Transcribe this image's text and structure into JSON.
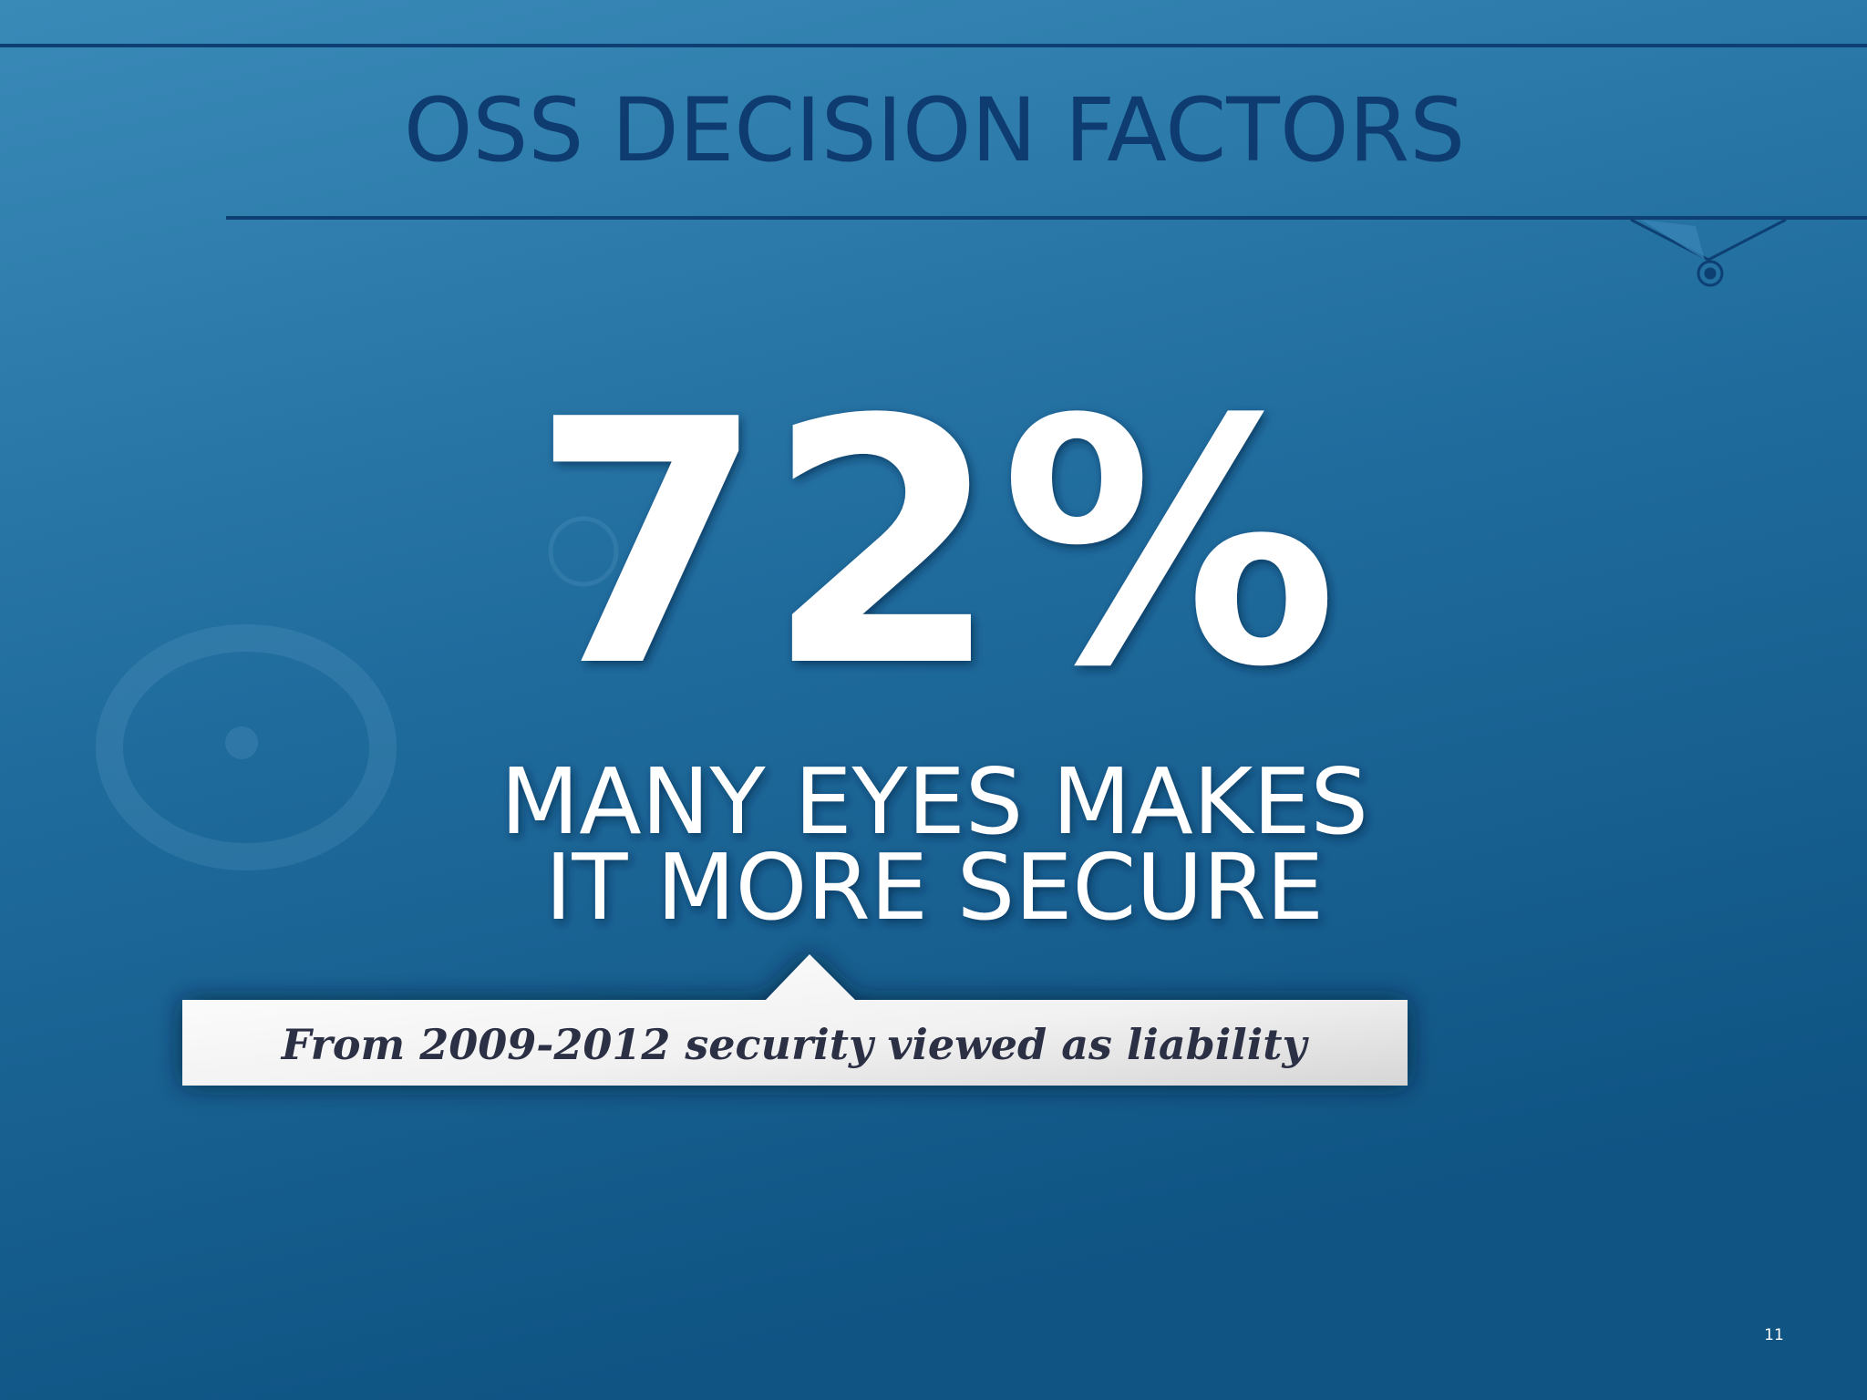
{
  "slide": {
    "title": "OSS DECISION FACTORS",
    "stat": "72%",
    "caption_lines": [
      "MANY EYES MAKES",
      "IT MORE SECURE"
    ],
    "callout": "From 2009-2012 security viewed as liability",
    "page_number": "11"
  }
}
